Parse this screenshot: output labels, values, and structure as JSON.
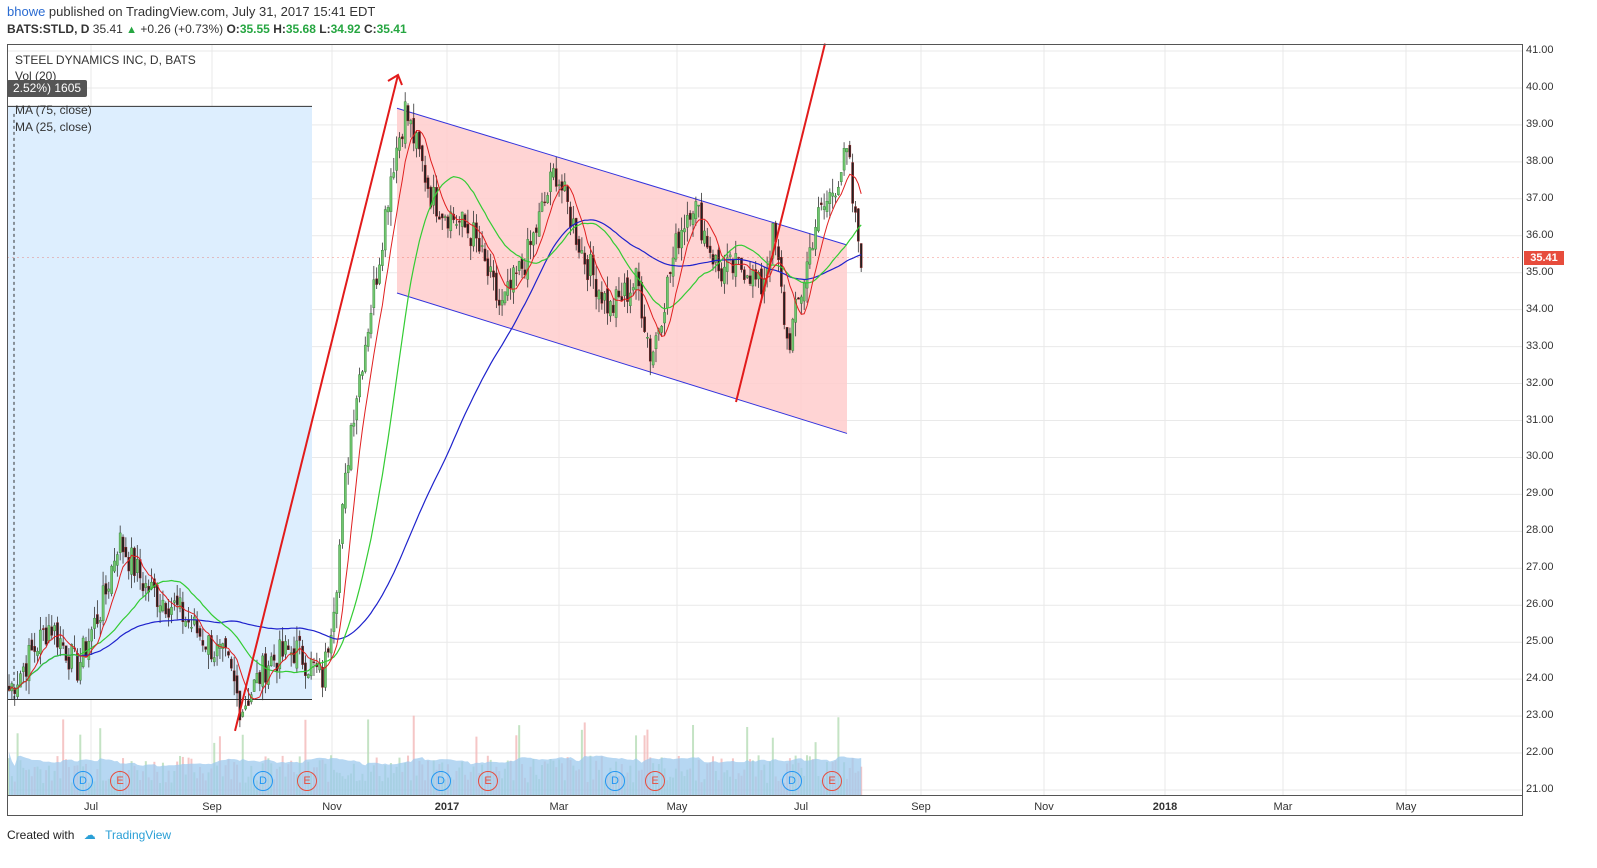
{
  "header": {
    "user": "bhowe",
    "published_text": " published on TradingView.com, July 31, 2017 15:41 EDT",
    "symbol": "BATS:STLD, D",
    "last": "35.41",
    "change": "+0.26 (+0.73%)",
    "open_label": "O:",
    "open": "35.55",
    "high_label": "H:",
    "high": "35.68",
    "low_label": "L:",
    "low": "34.92",
    "close_label": "C:",
    "close": "35.41"
  },
  "legend": {
    "title": "STEEL DYNAMICS INC, D, BATS",
    "vol": "Vol (20)",
    "ma1": "MA (75, close)",
    "ma2": "MA (25, close)",
    "measure": "2.52%) 1605"
  },
  "price_tag": "35.41",
  "footer": {
    "created": "Created with",
    "brand": "TradingView"
  },
  "markers": [
    {
      "type": "D",
      "label": "D",
      "date_index": 0
    },
    {
      "type": "E",
      "label": "E",
      "date_index": 1
    },
    {
      "type": "D",
      "label": "D",
      "date_index": 2
    },
    {
      "type": "E",
      "label": "E",
      "date_index": 3
    },
    {
      "type": "D",
      "label": "D",
      "date_index": 4
    },
    {
      "type": "E",
      "label": "E",
      "date_index": 5
    },
    {
      "type": "D",
      "label": "D",
      "date_index": 6
    },
    {
      "type": "E",
      "label": "E",
      "date_index": 7
    },
    {
      "type": "D",
      "label": "D",
      "date_index": 8
    },
    {
      "type": "E",
      "label": "E",
      "date_index": 9
    }
  ],
  "colors": {
    "up": "#26a641",
    "down": "#e74c3c",
    "ma75": "#1e22cc",
    "ma25": "#33cc33",
    "ma_fast": "#e02020",
    "channel_fill": "#ffcccc",
    "range_fill": "#ddeefe",
    "volume": "#9ec9ee"
  },
  "chart_data": {
    "type": "candlestick",
    "symbol": "BATS:STLD",
    "interval": "D",
    "y_ticks": [
      "41.00",
      "40.00",
      "39.00",
      "38.00",
      "37.00",
      "36.00",
      "35.00",
      "34.00",
      "33.00",
      "32.00",
      "31.00",
      "30.00",
      "29.00",
      "28.00",
      "27.00",
      "26.00",
      "25.00",
      "24.00",
      "23.00",
      "22.00",
      "21.00"
    ],
    "ylim": [
      20.85,
      41.25
    ],
    "x_ticks": [
      {
        "label": "Jul",
        "bold": false
      },
      {
        "label": "Sep",
        "bold": false
      },
      {
        "label": "Nov",
        "bold": false
      },
      {
        "label": "2017",
        "bold": true
      },
      {
        "label": "Mar",
        "bold": false
      },
      {
        "label": "May",
        "bold": false
      },
      {
        "label": "Jul",
        "bold": false
      },
      {
        "label": "Sep",
        "bold": false
      },
      {
        "label": "Nov",
        "bold": false
      },
      {
        "label": "2018",
        "bold": true
      },
      {
        "label": "Mar",
        "bold": false
      },
      {
        "label": "May",
        "bold": false
      }
    ],
    "approx_close_path": [
      {
        "t": "2016-05-20",
        "y": 23.7
      },
      {
        "t": "2016-06-10",
        "y": 25.5
      },
      {
        "t": "2016-06-24",
        "y": 24.3
      },
      {
        "t": "2016-07-08",
        "y": 26.2
      },
      {
        "t": "2016-07-15",
        "y": 27.8
      },
      {
        "t": "2016-07-29",
        "y": 26.5
      },
      {
        "t": "2016-08-12",
        "y": 26.0
      },
      {
        "t": "2016-08-26",
        "y": 25.2
      },
      {
        "t": "2016-09-09",
        "y": 24.4
      },
      {
        "t": "2016-09-16",
        "y": 23.2
      },
      {
        "t": "2016-09-30",
        "y": 24.5
      },
      {
        "t": "2016-10-14",
        "y": 24.8
      },
      {
        "t": "2016-10-28",
        "y": 24.0
      },
      {
        "t": "2016-11-04",
        "y": 26.8
      },
      {
        "t": "2016-11-11",
        "y": 30.8
      },
      {
        "t": "2016-11-25",
        "y": 35.2
      },
      {
        "t": "2016-12-02",
        "y": 37.8
      },
      {
        "t": "2016-12-09",
        "y": 39.4
      },
      {
        "t": "2016-12-23",
        "y": 37.0
      },
      {
        "t": "2017-01-13",
        "y": 36.0
      },
      {
        "t": "2017-01-27",
        "y": 34.0
      },
      {
        "t": "2017-02-10",
        "y": 35.5
      },
      {
        "t": "2017-02-24",
        "y": 37.8
      },
      {
        "t": "2017-03-10",
        "y": 35.5
      },
      {
        "t": "2017-03-24",
        "y": 34.0
      },
      {
        "t": "2017-04-07",
        "y": 34.8
      },
      {
        "t": "2017-04-14",
        "y": 32.7
      },
      {
        "t": "2017-04-28",
        "y": 36.0
      },
      {
        "t": "2017-05-05",
        "y": 37.0
      },
      {
        "t": "2017-05-19",
        "y": 35.0
      },
      {
        "t": "2017-06-02",
        "y": 35.2
      },
      {
        "t": "2017-06-09",
        "y": 34.5
      },
      {
        "t": "2017-06-16",
        "y": 36.1
      },
      {
        "t": "2017-06-23",
        "y": 33.0
      },
      {
        "t": "2017-06-30",
        "y": 34.5
      },
      {
        "t": "2017-07-07",
        "y": 36.3
      },
      {
        "t": "2017-07-14",
        "y": 37.0
      },
      {
        "t": "2017-07-21",
        "y": 37.9
      },
      {
        "t": "2017-07-24",
        "y": 38.2
      },
      {
        "t": "2017-07-27",
        "y": 36.5
      },
      {
        "t": "2017-07-31",
        "y": 35.41
      }
    ]
  }
}
